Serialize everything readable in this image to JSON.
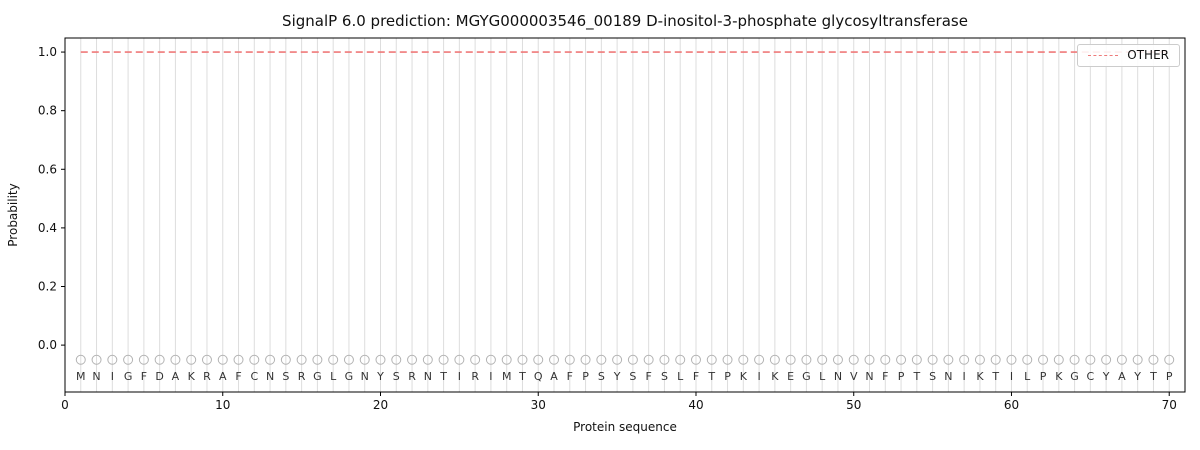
{
  "chart_data": {
    "type": "line",
    "title": "SignalP 6.0 prediction: MGYG000003546_00189 D-inositol-3-phosphate glycosyltransferase",
    "xlabel": "Protein sequence",
    "ylabel": "Probability",
    "xlim": [
      0,
      71
    ],
    "ylim": [
      -0.16,
      1.048
    ],
    "xticks": [
      0,
      10,
      20,
      30,
      40,
      50,
      60,
      70
    ],
    "yticks": [
      0.0,
      0.2,
      0.4,
      0.6,
      0.8,
      1.0
    ],
    "grid": "vertical-line-per-residue",
    "grid_color": "#dddddd",
    "spine_color": "#000000",
    "sequence": "MNIGFDAKRAFCNSRGLGNYSRNTIRIMTQAFPSYSFSLFTPKIKEGLNVNFPTSNIKTILPKGCYAYTP",
    "sequence_letter_color": "#333333",
    "marker_y": -0.05,
    "marker_color": "#b3b3b3",
    "letter_y": -0.105,
    "series": [
      {
        "name": "OTHER",
        "color": "#ef7a7a",
        "style": "dashed",
        "x": [
          1,
          2,
          3,
          4,
          5,
          6,
          7,
          8,
          9,
          10,
          11,
          12,
          13,
          14,
          15,
          16,
          17,
          18,
          19,
          20,
          21,
          22,
          23,
          24,
          25,
          26,
          27,
          28,
          29,
          30,
          31,
          32,
          33,
          34,
          35,
          36,
          37,
          38,
          39,
          40,
          41,
          42,
          43,
          44,
          45,
          46,
          47,
          48,
          49,
          50,
          51,
          52,
          53,
          54,
          55,
          56,
          57,
          58,
          59,
          60,
          61,
          62,
          63,
          64,
          65,
          66,
          67,
          68,
          69,
          70
        ],
        "values": [
          1.0,
          1.0,
          1.0,
          1.0,
          1.0,
          1.0,
          1.0,
          1.0,
          1.0,
          1.0,
          1.0,
          1.0,
          1.0,
          1.0,
          1.0,
          1.0,
          1.0,
          1.0,
          1.0,
          1.0,
          1.0,
          1.0,
          1.0,
          1.0,
          1.0,
          1.0,
          1.0,
          1.0,
          1.0,
          1.0,
          1.0,
          1.0,
          1.0,
          1.0,
          1.0,
          1.0,
          1.0,
          1.0,
          1.0,
          1.0,
          1.0,
          1.0,
          1.0,
          1.0,
          1.0,
          1.0,
          1.0,
          1.0,
          1.0,
          1.0,
          1.0,
          1.0,
          1.0,
          1.0,
          1.0,
          1.0,
          1.0,
          1.0,
          1.0,
          1.0,
          1.0,
          1.0,
          1.0,
          1.0,
          1.0,
          1.0,
          1.0,
          1.0,
          1.0,
          1.0
        ]
      }
    ],
    "legend": {
      "position": "upper right",
      "entries": [
        {
          "label": "OTHER",
          "color": "#ef7a7a",
          "style": "dashed"
        }
      ]
    }
  }
}
